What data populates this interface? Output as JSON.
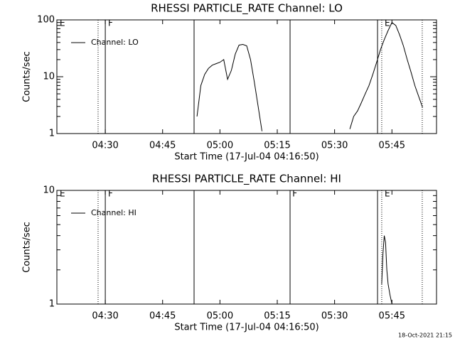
{
  "chart_data": [
    {
      "type": "line",
      "title": "RHESSI PARTICLE_RATE Channel: LO",
      "xlabel": "Start Time (17-Jul-04 04:16:50)",
      "ylabel": "Counts/sec",
      "xlim": [
        "04:17:20",
        "05:56:40"
      ],
      "xticks": [
        "04:30",
        "04:45",
        "05:00",
        "05:15",
        "05:30",
        "05:45"
      ],
      "ylim": [
        1,
        100
      ],
      "yticks": [
        1,
        10,
        100
      ],
      "yminorticks": [
        2,
        3,
        4,
        5,
        6,
        7,
        8,
        9,
        20,
        30,
        40,
        50,
        60,
        70,
        80,
        90
      ],
      "log_y": true,
      "legend": "upper left",
      "x": [
        "04:54",
        "04:55",
        "04:56",
        "04:57",
        "04:58",
        "04:59",
        "05:00",
        "05:01",
        "05:02",
        "05:03",
        "05:04",
        "05:05",
        "05:06",
        "05:07",
        "05:08",
        "05:09",
        "05:10",
        "05:11",
        "05:12",
        "05:34",
        "05:35",
        "05:36",
        "05:37",
        "05:38",
        "05:39",
        "05:40",
        "05:41",
        "05:42",
        "05:43",
        "05:44",
        "05:45",
        "05:46",
        "05:47",
        "05:48",
        "05:49",
        "05:50",
        "05:51",
        "05:52",
        "05:53"
      ],
      "series": [
        {
          "name": "Channel: LO",
          "color": "#000000",
          "values": [
            2,
            7,
            11,
            14,
            16,
            17,
            18,
            20,
            9,
            13,
            25,
            36,
            37,
            35,
            20,
            8,
            3,
            1.1,
            null,
            1.2,
            2,
            2.5,
            3.5,
            5,
            7,
            11,
            18,
            30,
            45,
            65,
            90,
            80,
            55,
            35,
            20,
            12,
            7,
            4.5,
            2.9
          ]
        }
      ],
      "markers": [
        {
          "x": "04:28:07",
          "style": "dotted"
        },
        {
          "x": "04:30:00",
          "style": "solid"
        },
        {
          "x": "04:53:14",
          "style": "solid"
        },
        {
          "x": "05:18:21",
          "style": "solid"
        },
        {
          "x": "05:41:14",
          "style": "solid"
        },
        {
          "x": "05:42:20",
          "style": "dotted"
        },
        {
          "x": "05:52:56",
          "style": "dotted"
        }
      ],
      "annotations": [
        {
          "text": "E",
          "x": "04:18:04"
        },
        {
          "text": "F",
          "x": "04:30:44"
        },
        {
          "text": "E",
          "x": "05:43:05"
        }
      ]
    },
    {
      "type": "line",
      "title": "RHESSI PARTICLE_RATE Channel: HI",
      "xlabel": "Start Time (17-Jul-04 04:16:50)",
      "ylabel": "Counts/sec",
      "xlim": [
        "04:17:20",
        "05:56:40"
      ],
      "xticks": [
        "04:30",
        "04:45",
        "05:00",
        "05:15",
        "05:30",
        "05:45"
      ],
      "ylim": [
        1,
        10
      ],
      "yticks": [
        1,
        10
      ],
      "yminorticks": [
        2,
        3,
        4,
        5,
        6,
        7,
        8,
        9
      ],
      "log_y": true,
      "legend": "upper left",
      "x": [
        "05:42:20",
        "05:42:40",
        "05:43:00",
        "05:43:20",
        "05:43:40",
        "05:44:00",
        "05:44:30",
        "05:45:00"
      ],
      "series": [
        {
          "name": "Channel: HI",
          "color": "#000000",
          "values": [
            1.5,
            2.8,
            4,
            3.5,
            2,
            1.5,
            1.2,
            1.0
          ]
        }
      ],
      "markers": [
        {
          "x": "04:28:07",
          "style": "dotted"
        },
        {
          "x": "04:30:00",
          "style": "solid"
        },
        {
          "x": "04:53:14",
          "style": "solid"
        },
        {
          "x": "05:18:21",
          "style": "solid"
        },
        {
          "x": "05:41:14",
          "style": "solid"
        },
        {
          "x": "05:42:20",
          "style": "dotted"
        },
        {
          "x": "05:52:56",
          "style": "dotted"
        }
      ],
      "annotations": [
        {
          "text": "E",
          "x": "04:18:04"
        },
        {
          "text": "F",
          "x": "04:30:44"
        },
        {
          "text": "F",
          "x": "05:18:57"
        },
        {
          "text": "E",
          "x": "05:43:05"
        }
      ]
    }
  ],
  "footer": "18-Oct-2021 21:15"
}
